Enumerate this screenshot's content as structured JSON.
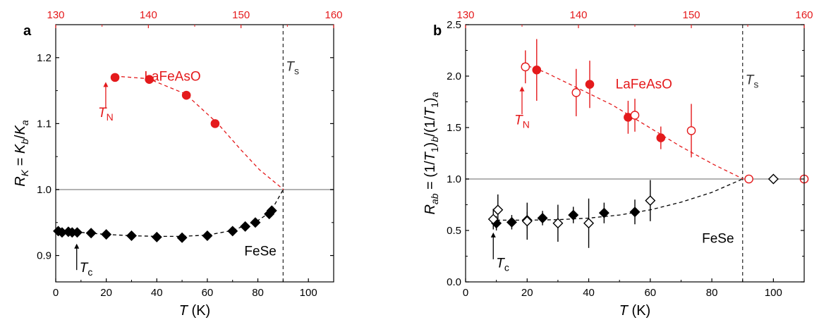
{
  "colors": {
    "red": "#e41a1c",
    "black": "#000000",
    "gray": "#b3b3b3",
    "dash_gray": "#333333"
  },
  "chart_data": [
    {
      "type": "scatter",
      "panel_label": "a",
      "xlabel_italic": "T",
      "xlabel_rest": " (K)",
      "ylabel": "R_K = K_b/K_a",
      "ylabel_parts": [
        {
          "t": "R",
          "i": true,
          "sub": false
        },
        {
          "t": "K",
          "i": true,
          "sub": true
        },
        {
          "t": " = ",
          "i": false,
          "sub": false
        },
        {
          "t": "K",
          "i": true,
          "sub": false
        },
        {
          "t": "b",
          "i": true,
          "sub": true
        },
        {
          "t": "/",
          "i": false,
          "sub": false
        },
        {
          "t": "K",
          "i": true,
          "sub": false
        },
        {
          "t": "a",
          "i": true,
          "sub": true
        }
      ],
      "xlim": [
        0,
        110
      ],
      "ylim": [
        0.86,
        1.25
      ],
      "xticks": [
        "0",
        "20",
        "40",
        "60",
        "80",
        "100"
      ],
      "yticks": [
        "0.9",
        "1.0",
        "1.1",
        "1.2"
      ],
      "top_xlim": [
        130,
        160
      ],
      "top_xticks": [
        "130",
        "140",
        "150",
        "160"
      ],
      "hline": 1.0,
      "vline": 90,
      "series": [
        {
          "name": "FeSe",
          "color": "#000000",
          "marker": "diamond",
          "axis": "bottom",
          "points": [
            [
              1,
              0.937
            ],
            [
              2.5,
              0.935
            ],
            [
              5,
              0.936
            ],
            [
              6.5,
              0.935
            ],
            [
              8.5,
              0.935
            ],
            [
              14,
              0.934
            ],
            [
              20,
              0.932
            ],
            [
              30,
              0.93
            ],
            [
              40,
              0.928
            ],
            [
              50,
              0.927
            ],
            [
              60,
              0.93
            ],
            [
              70,
              0.937
            ],
            [
              75,
              0.944
            ],
            [
              79,
              0.95
            ],
            [
              84.5,
              0.963
            ],
            [
              85.5,
              0.968
            ]
          ]
        },
        {
          "name": "LaFeAsO",
          "color": "#e41a1c",
          "marker": "circle",
          "axis": "top",
          "points": [
            [
              136.4,
              1.17
            ],
            [
              140.1,
              1.167
            ],
            [
              144.1,
              1.143
            ],
            [
              147.2,
              1.1
            ]
          ]
        }
      ],
      "fit_fese": [
        [
          0,
          0.936
        ],
        [
          10,
          0.935
        ],
        [
          20,
          0.932
        ],
        [
          30,
          0.93
        ],
        [
          40,
          0.929
        ],
        [
          50,
          0.929
        ],
        [
          60,
          0.931
        ],
        [
          70,
          0.938
        ],
        [
          80,
          0.953
        ],
        [
          85,
          0.966
        ],
        [
          90,
          1.0
        ]
      ],
      "fit_lafeaso": [
        [
          136.4,
          1.172
        ],
        [
          140,
          1.168
        ],
        [
          144,
          1.145
        ],
        [
          147.5,
          1.1
        ],
        [
          150,
          1.06
        ],
        [
          152,
          1.03
        ],
        [
          154.6,
          1.0
        ]
      ],
      "annotations": {
        "tn_label": "T",
        "tn_sub": "N",
        "tn_x": 135.4,
        "tn_y": 1.11,
        "tn_arrow_from": 1.123,
        "tn_arrow_to": 1.163,
        "tc_label": "T",
        "tc_sub": "c",
        "tc_x": 8.3,
        "tc_y": 0.875,
        "tc_arrow_from": 0.878,
        "tc_arrow_to": 0.918,
        "ts_label": "T",
        "ts_sub": "s",
        "ts_x": 90,
        "ts_y": 1.18,
        "lafeaso_label": "LaFeAsO",
        "lafeaso_x": 142.6,
        "lafeaso_y": 1.165,
        "fese_label": "FeSe",
        "fese_x": 81,
        "fese_y": 0.9
      }
    },
    {
      "type": "scatter",
      "panel_label": "b",
      "xlabel_italic": "T",
      "xlabel_rest": " (K)",
      "ylabel": "R_ab = (1/T_1)_b/(1/T_1)_a",
      "ylabel_parts": [
        {
          "t": "R",
          "i": true,
          "sub": false
        },
        {
          "t": "ab",
          "i": true,
          "sub": true
        },
        {
          "t": " = (1/",
          "i": false,
          "sub": false
        },
        {
          "t": "T",
          "i": true,
          "sub": false
        },
        {
          "t": "1",
          "i": false,
          "sub": true
        },
        {
          "t": ")",
          "i": false,
          "sub": false
        },
        {
          "t": "b",
          "i": true,
          "sub": true
        },
        {
          "t": "/(1/",
          "i": false,
          "sub": false
        },
        {
          "t": "T",
          "i": true,
          "sub": false
        },
        {
          "t": "1",
          "i": false,
          "sub": true
        },
        {
          "t": ")",
          "i": false,
          "sub": false
        },
        {
          "t": "a",
          "i": true,
          "sub": true
        }
      ],
      "xlim": [
        0,
        110
      ],
      "ylim": [
        0.0,
        2.5
      ],
      "xticks": [
        "0",
        "20",
        "40",
        "60",
        "80",
        "100"
      ],
      "yticks": [
        "0.0",
        "0.5",
        "1.0",
        "1.5",
        "2.0",
        "2.5"
      ],
      "top_xlim": [
        130,
        160
      ],
      "top_xticks": [
        "130",
        "140",
        "150",
        "160"
      ],
      "hline": 1.0,
      "vline": 90,
      "series": [
        {
          "name": "FeSe",
          "color": "#000000",
          "marker": "diamond",
          "filled": true,
          "axis": "bottom",
          "points": [
            [
              10,
              0.57,
              0.07
            ],
            [
              15,
              0.58,
              0.07
            ],
            [
              20,
              0.6,
              0.08
            ],
            [
              25,
              0.62,
              0.07
            ],
            [
              35,
              0.65,
              0.08
            ],
            [
              45,
              0.67,
              0.1
            ],
            [
              55,
              0.68,
              0.12
            ]
          ]
        },
        {
          "name": "FeSe",
          "color": "#000000",
          "marker": "diamond",
          "filled": false,
          "axis": "bottom",
          "points": [
            [
              9,
              0.61,
              0.1
            ],
            [
              10.5,
              0.7,
              0.15
            ],
            [
              20,
              0.59,
              0.18
            ],
            [
              30,
              0.57,
              0.18
            ],
            [
              40,
              0.57,
              0.24
            ],
            [
              60,
              0.79,
              0.2
            ],
            [
              100,
              1.0,
              0.0
            ]
          ]
        },
        {
          "name": "LaFeAsO",
          "color": "#e41a1c",
          "marker": "circle",
          "filled": true,
          "axis": "top",
          "points": [
            [
              136.3,
              2.06,
              0.3
            ],
            [
              141,
              1.92,
              0.23
            ],
            [
              144.4,
              1.6,
              0.16
            ],
            [
              147.3,
              1.4,
              0.11
            ]
          ]
        },
        {
          "name": "LaFeAsO",
          "color": "#e41a1c",
          "marker": "circle",
          "filled": false,
          "axis": "top",
          "points": [
            [
              135.3,
              2.09,
              0.16
            ],
            [
              139.8,
              1.84,
              0.23
            ],
            [
              145,
              1.62,
              0.16
            ],
            [
              150,
              1.47,
              0.26
            ],
            [
              155.1,
              1.0,
              0.0
            ],
            [
              160,
              1.0,
              0.0
            ]
          ]
        }
      ],
      "fit_fese": [
        [
          8,
          0.6
        ],
        [
          20,
          0.6
        ],
        [
          30,
          0.605
        ],
        [
          40,
          0.62
        ],
        [
          50,
          0.65
        ],
        [
          60,
          0.7
        ],
        [
          70,
          0.775
        ],
        [
          80,
          0.87
        ],
        [
          90,
          1.0
        ]
      ],
      "fit_lafeaso": [
        [
          135,
          2.12
        ],
        [
          137,
          2.04
        ],
        [
          140,
          1.88
        ],
        [
          143,
          1.72
        ],
        [
          146,
          1.52
        ],
        [
          149,
          1.32
        ],
        [
          152,
          1.14
        ],
        [
          154.6,
          1.0
        ]
      ],
      "annotations": {
        "tn_label": "T",
        "tn_sub": "N",
        "tn_x": 135,
        "tn_y": 1.53,
        "tn_arrow_from": 1.63,
        "tn_arrow_to": 1.9,
        "tc_label": "T",
        "tc_sub": "c",
        "tc_x": 9,
        "tc_y": 0.14,
        "tc_arrow_from": 0.22,
        "tc_arrow_to": 0.48,
        "ts_label": "T",
        "ts_sub": "s",
        "ts_x": 90,
        "ts_y": 1.92,
        "lafeaso_label": "LaFeAsO",
        "lafeaso_x": 145.8,
        "lafeaso_y": 1.88,
        "fese_label": "FeSe",
        "fese_x": 82,
        "fese_y": 0.38
      }
    }
  ]
}
